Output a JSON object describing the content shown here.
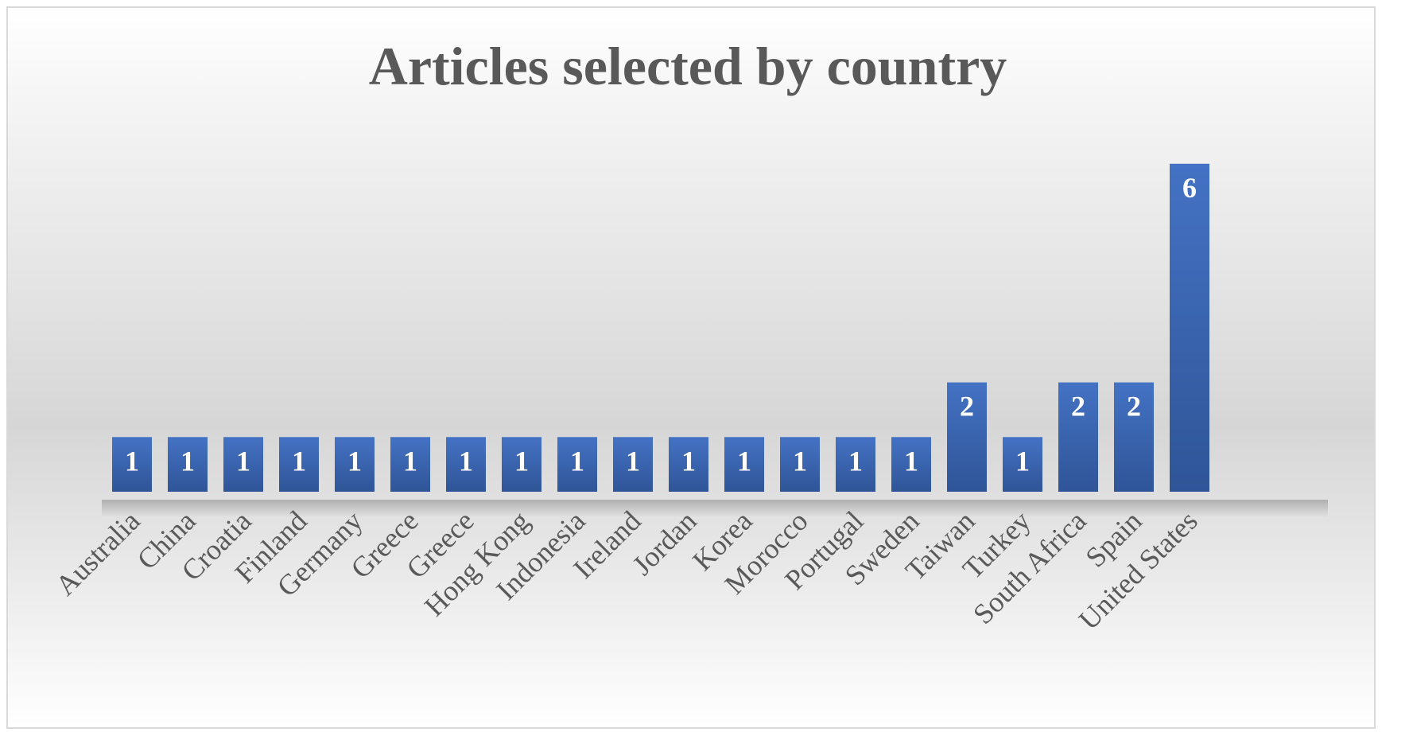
{
  "chart_data": {
    "type": "bar",
    "title": "Articles selected by country",
    "categories": [
      "Australia",
      "China",
      "Croatia",
      "Finland",
      "Germany",
      "Greece",
      "Greece",
      "Hong Kong",
      "Indonesia",
      "Ireland",
      "Jordan",
      "Korea",
      "Morocco",
      "Portugal",
      "Sweden",
      "Taiwan",
      "Turkey",
      "South Africa",
      "Spain",
      "United States"
    ],
    "values": [
      1,
      1,
      1,
      1,
      1,
      1,
      1,
      1,
      1,
      1,
      1,
      1,
      1,
      1,
      1,
      2,
      1,
      2,
      2,
      6
    ],
    "data_labels": true,
    "xlabel": "",
    "ylabel": "",
    "ylim": [
      0,
      6
    ],
    "grid": false,
    "legend": "none",
    "colors": {
      "bar": "#4472c4",
      "bar_shade": "#2f5597",
      "label": "#ffffff",
      "text": "#595959"
    }
  }
}
